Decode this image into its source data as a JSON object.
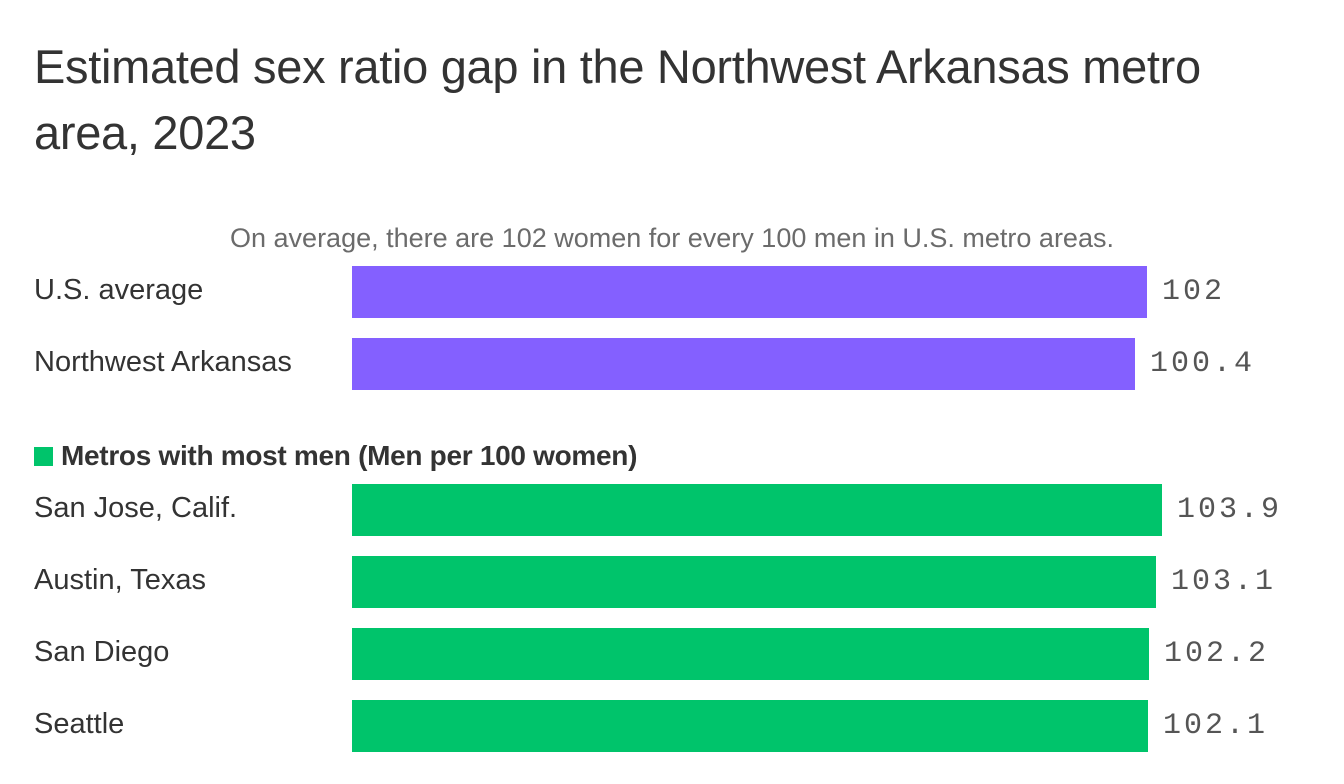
{
  "chart_data": {
    "type": "bar",
    "orientation": "horizontal",
    "title": "Estimated sex ratio gap in the Northwest Arkansas metro area, 2023",
    "groups": [
      {
        "key": "average",
        "subtitle": "On average, there are 102 women for every 100 men in U.S. metro areas.",
        "color": "#8460ff",
        "items": [
          {
            "label": "U.S. average",
            "value": 102,
            "value_label": "102"
          },
          {
            "label": "Northwest Arkansas",
            "value": 100.4,
            "value_label": "100.4"
          }
        ]
      },
      {
        "key": "most_men",
        "legend_label": "Metros with most men (Men per 100 women)",
        "color": "#00c46b",
        "items": [
          {
            "label": "San Jose, Calif.",
            "value": 103.9,
            "value_label": "103.9"
          },
          {
            "label": "Austin, Texas",
            "value": 103.1,
            "value_label": "103.1"
          },
          {
            "label": "San Diego",
            "value": 102.2,
            "value_label": "102.2"
          },
          {
            "label": "Seattle",
            "value": 102.1,
            "value_label": "102.1"
          }
        ]
      }
    ],
    "xlim": [
      0,
      103.9
    ]
  }
}
